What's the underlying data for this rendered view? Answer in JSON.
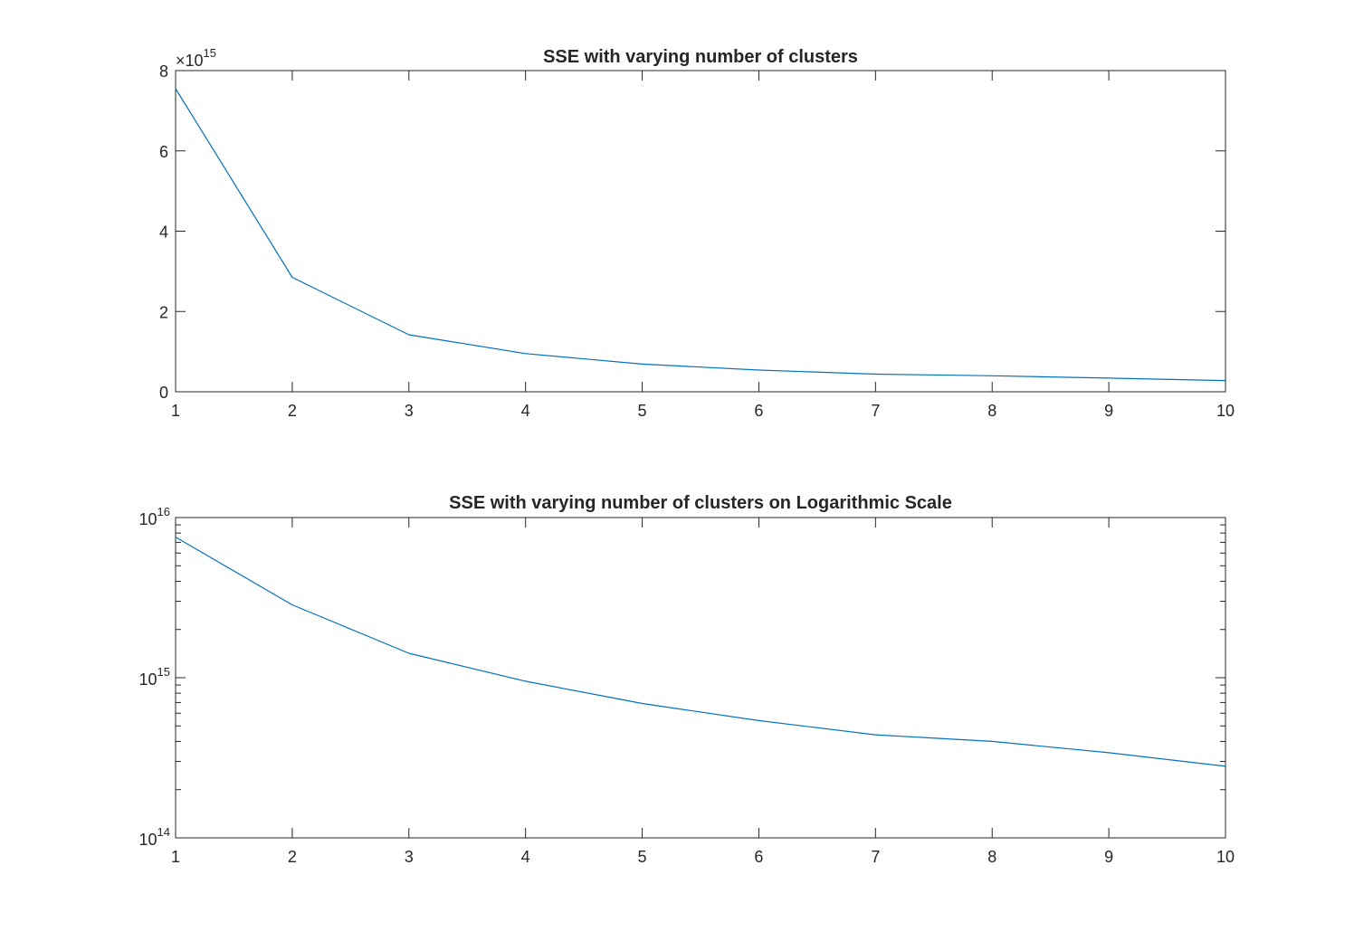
{
  "chart_data": [
    {
      "type": "line",
      "title": "SSE with varying number of clusters",
      "xlabel": "",
      "ylabel": "",
      "x": [
        1,
        2,
        3,
        4,
        5,
        6,
        7,
        8,
        9,
        10
      ],
      "series": [
        {
          "values": [
            7550000000000000.0,
            2850000000000000.0,
            1420000000000000.0,
            950000000000000.0,
            690000000000000.0,
            540000000000000.0,
            440000000000000.0,
            400000000000000.0,
            340000000000000.0,
            280000000000000.0
          ]
        }
      ],
      "xlim": [
        1,
        10
      ],
      "ylim": [
        0,
        8000000000000000.0
      ],
      "yscale": "linear",
      "multiplier_label": "×10",
      "multiplier_exponent": "15",
      "xticks": [
        "1",
        "2",
        "3",
        "4",
        "5",
        "6",
        "7",
        "8",
        "9",
        "10"
      ],
      "yticks": [
        "0",
        "2",
        "4",
        "6",
        "8"
      ],
      "grid": false,
      "line_color": "#0072BD"
    },
    {
      "type": "line",
      "title": "SSE with varying number of clusters on Logarithmic Scale",
      "xlabel": "",
      "ylabel": "",
      "x": [
        1,
        2,
        3,
        4,
        5,
        6,
        7,
        8,
        9,
        10
      ],
      "series": [
        {
          "values": [
            7550000000000000.0,
            2850000000000000.0,
            1420000000000000.0,
            950000000000000.0,
            690000000000000.0,
            540000000000000.0,
            440000000000000.0,
            400000000000000.0,
            340000000000000.0,
            280000000000000.0
          ]
        }
      ],
      "xlim": [
        1,
        10
      ],
      "ylim": [
        100000000000000.0,
        1e+16
      ],
      "yscale": "log",
      "xticks": [
        "1",
        "2",
        "3",
        "4",
        "5",
        "6",
        "7",
        "8",
        "9",
        "10"
      ],
      "yticks": [
        {
          "base": "10",
          "exp": "14"
        },
        {
          "base": "10",
          "exp": "15"
        },
        {
          "base": "10",
          "exp": "16"
        }
      ],
      "grid": false,
      "line_color": "#0072BD"
    }
  ]
}
